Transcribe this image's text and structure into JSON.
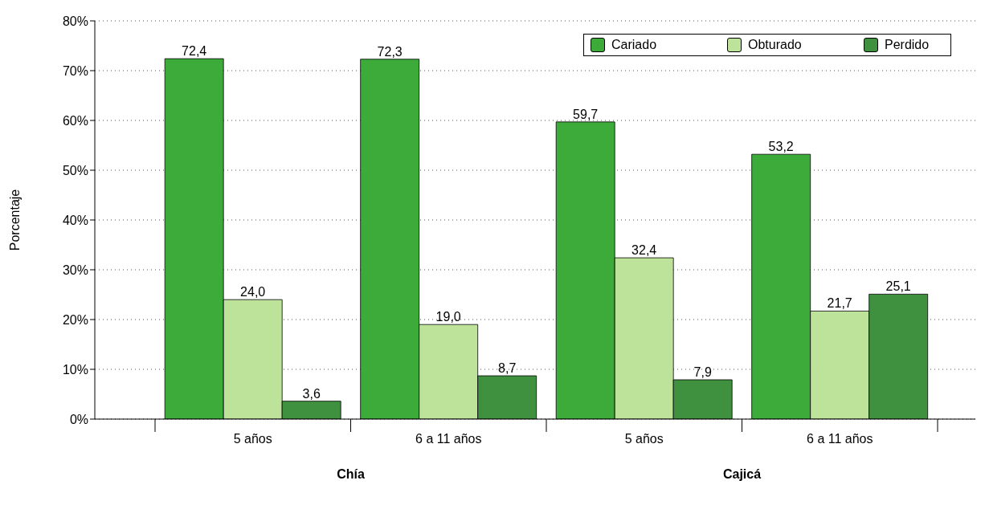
{
  "chart_data": {
    "type": "bar",
    "ylabel": "Porcentaje",
    "categories": [
      "5 años",
      "6 a 11 años",
      "5 años",
      "6 a 11 años"
    ],
    "series": [
      {
        "name": "Cariado",
        "color": "#3dab3a",
        "values": [
          72.4,
          72.3,
          59.7,
          53.2
        ],
        "value_labels": [
          "72,4",
          "72,3",
          "59,7",
          "53,2"
        ]
      },
      {
        "name": "Obturado",
        "color": "#bde39b",
        "values": [
          24.0,
          19.0,
          32.4,
          21.7
        ],
        "value_labels": [
          "24,0",
          "19,0",
          "32,4",
          "21,7"
        ]
      },
      {
        "name": "Perdido",
        "color": "#3f9140",
        "values": [
          3.6,
          8.7,
          7.9,
          25.1
        ],
        "value_labels": [
          "3,6",
          "8,7",
          "7,9",
          "25,1"
        ]
      }
    ],
    "annotations": [
      "Chía",
      "Cajicá"
    ],
    "ylim": [
      0,
      80
    ],
    "yticks": [
      {
        "value": 0,
        "label": "0%"
      },
      {
        "value": 10,
        "label": "10%"
      },
      {
        "value": 20,
        "label": "20%"
      },
      {
        "value": 30,
        "label": "30%"
      },
      {
        "value": 40,
        "label": "40%"
      },
      {
        "value": 50,
        "label": "50%"
      },
      {
        "value": 60,
        "label": "60%"
      },
      {
        "value": 70,
        "label": "70%"
      },
      {
        "value": 80,
        "label": "80%"
      }
    ],
    "grid": "y",
    "legend": "top right"
  }
}
